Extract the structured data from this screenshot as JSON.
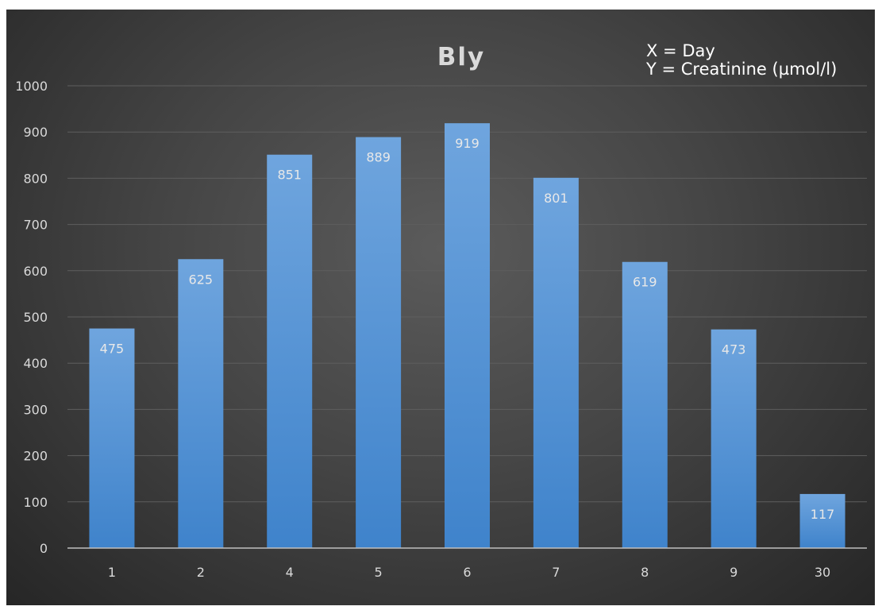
{
  "chart_data": {
    "type": "bar",
    "title": "Bly",
    "notes": [
      "X = Day",
      "Y = Creatinine  (µmol/l)"
    ],
    "xlabel": "",
    "ylabel": "",
    "categories": [
      "1",
      "2",
      "4",
      "5",
      "6",
      "7",
      "8",
      "9",
      "30"
    ],
    "values": [
      475,
      625,
      851,
      889,
      919,
      801,
      619,
      473,
      117
    ],
    "data_labels": [
      "475",
      "625",
      "851",
      "889",
      "919",
      "801",
      "619",
      "473",
      "117"
    ],
    "ylim": [
      0,
      1000
    ],
    "yticks": [
      "0",
      "100",
      "200",
      "300",
      "400",
      "500",
      "600",
      "700",
      "800",
      "900",
      "1000"
    ],
    "grid": true,
    "legend": "none",
    "colors": {
      "bar_top": "#6fa5de",
      "bar_bottom": "#3f83cb",
      "gridline": "#5e5e5e",
      "axis": "#bfbfbf",
      "background": "#3a3a3a"
    }
  }
}
